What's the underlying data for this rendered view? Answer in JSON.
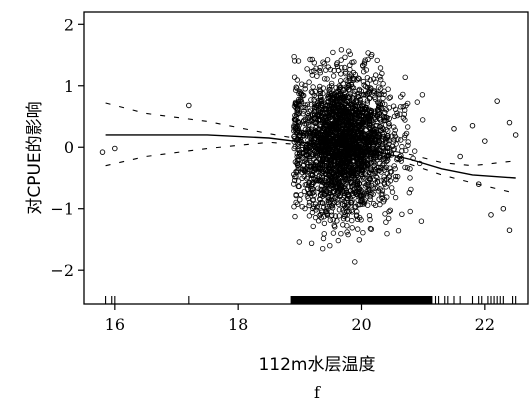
{
  "chart_data": {
    "type": "scatter",
    "title": "",
    "xlabel": "112m水层温度",
    "ylabel": "对CPUE的影响",
    "panel_label": "f",
    "xlim": [
      15.5,
      22.7
    ],
    "ylim": [
      -2.55,
      2.2
    ],
    "x_ticks": [
      16,
      18,
      20,
      22
    ],
    "y_ticks": [
      -2,
      -1,
      0,
      1,
      2
    ],
    "x_tick_labels": [
      "16",
      "18",
      "20",
      "22"
    ],
    "y_tick_labels": [
      "−2",
      "−1",
      "0",
      "1",
      "2"
    ],
    "grid": false,
    "legend": "none",
    "smooth": {
      "x": [
        15.85,
        16.5,
        17.5,
        18.5,
        18.9,
        19.3,
        19.8,
        20.3,
        20.8,
        21.3,
        21.8,
        22.5
      ],
      "y": [
        0.2,
        0.2,
        0.2,
        0.15,
        0.1,
        0.05,
        0.0,
        -0.08,
        -0.2,
        -0.35,
        -0.45,
        -0.5
      ]
    },
    "upper_ci": {
      "x": [
        15.85,
        16.5,
        17.5,
        18.5,
        18.9,
        19.3,
        19.8,
        20.3,
        20.8,
        21.3,
        21.8,
        22.5
      ],
      "y": [
        0.72,
        0.55,
        0.42,
        0.22,
        0.15,
        0.1,
        0.05,
        -0.02,
        -0.12,
        -0.25,
        -0.3,
        -0.22
      ]
    },
    "lower_ci": {
      "x": [
        15.85,
        16.5,
        17.5,
        18.5,
        18.9,
        19.3,
        19.8,
        20.3,
        20.8,
        21.3,
        21.8,
        22.5
      ],
      "y": [
        -0.3,
        -0.15,
        -0.02,
        0.08,
        0.05,
        0.0,
        -0.05,
        -0.14,
        -0.28,
        -0.45,
        -0.58,
        -0.75
      ]
    },
    "sparse_points": {
      "x": [
        15.8,
        16.0,
        17.2,
        21.5,
        21.6,
        21.8,
        22.0,
        22.2,
        22.3,
        22.4,
        22.5,
        21.9,
        22.1,
        22.4
      ],
      "y": [
        -0.08,
        -0.02,
        0.68,
        0.3,
        -0.15,
        0.35,
        0.1,
        0.75,
        -1.0,
        0.4,
        0.2,
        -0.6,
        -1.1,
        -1.35
      ]
    },
    "dense_cloud": {
      "x_range": [
        18.9,
        21.0
      ],
      "center": [
        19.7,
        0.05
      ],
      "spread": [
        0.4,
        0.55
      ],
      "n": 2600
    },
    "rug": {
      "dense_range": [
        18.85,
        21.15
      ],
      "sparse_x": [
        15.85,
        15.95,
        16.0,
        17.2,
        21.2,
        21.25,
        21.35,
        21.4,
        21.5,
        21.6,
        21.8,
        21.9,
        21.95,
        22.05,
        22.1,
        22.15,
        22.2,
        22.25,
        22.3,
        22.45,
        22.5
      ]
    }
  }
}
